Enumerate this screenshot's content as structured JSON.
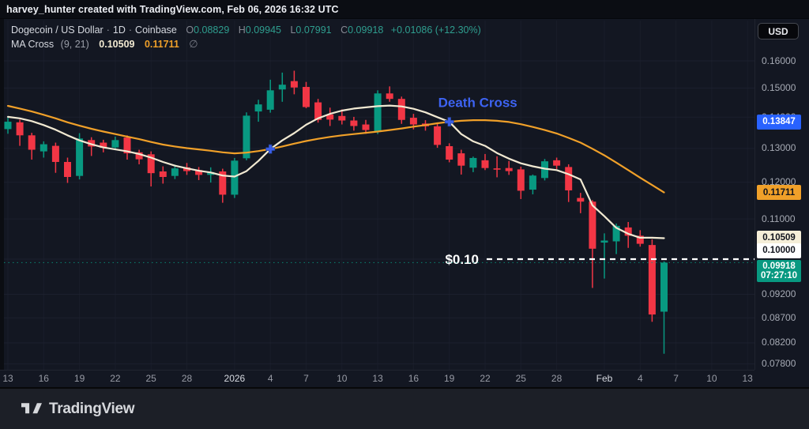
{
  "attribution": "harvey_hunter created with TradingView.com, Feb 06, 2026 16:32 UTC",
  "header": {
    "symbol": "Dogecoin / US Dollar",
    "separator": "·",
    "interval": "1D",
    "exchange": "Coinbase",
    "ohlc": {
      "o_label": "O",
      "o": "0.08829",
      "h_label": "H",
      "h": "0.09945",
      "l_label": "L",
      "l": "0.07991",
      "c_label": "C",
      "c": "0.09918",
      "change": "+0.01086 (+12.30%)"
    },
    "indicator": {
      "name": "MA Cross",
      "args": "(9, 21)",
      "ma_fast_value": "0.10509",
      "ma_slow_value": "0.11711",
      "extra": "∅"
    }
  },
  "currency_button_label": "USD",
  "footer_logo_text": "TradingView",
  "colors": {
    "background": "#131722",
    "up": "#089981",
    "down": "#f23645",
    "ma_fast": "#f1e9d2",
    "ma_slow": "#f0a029",
    "marker_blue": "#3a5eea",
    "annotation_blue": "#3d63f2",
    "grid": "#1e2230",
    "price_line_white": "#ffffff",
    "label_blue_bg": "#2962ff",
    "label_orange_bg": "#f0a029",
    "label_cream_bg": "#f5eed8",
    "label_white_bg": "#ffffff",
    "label_green_bg": "#089981"
  },
  "annotations": {
    "death_cross_text": "Death Cross",
    "price_line_label": "$0.10",
    "price_line_value": 0.1,
    "current_price": 0.09918,
    "countdown": "07:27:10"
  },
  "price_axis": {
    "ticks": [
      {
        "text": "0.16000",
        "price": 0.16
      },
      {
        "text": "0.15000",
        "price": 0.15
      },
      {
        "text": "0.14000",
        "price": 0.14
      },
      {
        "text": "0.13000",
        "price": 0.13
      },
      {
        "text": "0.12000",
        "price": 0.12
      },
      {
        "text": "0.11000",
        "price": 0.11
      },
      {
        "text": "0.09200",
        "price": 0.092
      },
      {
        "text": "0.08700",
        "price": 0.087
      },
      {
        "text": "0.08200",
        "price": 0.082
      },
      {
        "text": "0.07800",
        "price": 0.078
      }
    ],
    "grid_only_prices": [
      0.1
    ],
    "badges": [
      {
        "text": "0.13847",
        "price": 0.13847,
        "bg": "#2962ff",
        "fg": "#ffffff"
      },
      {
        "text": "0.11711",
        "price": 0.11711,
        "bg": "#f0a029",
        "fg": "#10131c"
      },
      {
        "text": "0.10509",
        "price": 0.10509,
        "bg": "#f5eed8",
        "fg": "#10131c"
      },
      {
        "text": "0.10000",
        "price": 0.1,
        "bg": "#ffffff",
        "fg": "#10131c",
        "y_override": 317
      },
      {
        "text": "0.09918",
        "sub": "07:27:10",
        "price": 0.09918,
        "bg": "#089981",
        "fg": "#ffffff",
        "y_override": 343
      }
    ]
  },
  "time_axis": {
    "labels": [
      {
        "index": 0,
        "text": "13"
      },
      {
        "index": 3,
        "text": "16"
      },
      {
        "index": 6,
        "text": "19"
      },
      {
        "index": 9,
        "text": "22"
      },
      {
        "index": 12,
        "text": "25"
      },
      {
        "index": 15,
        "text": "28"
      },
      {
        "index": 19,
        "text": "2026",
        "major": true
      },
      {
        "index": 22,
        "text": "4"
      },
      {
        "index": 25,
        "text": "7"
      },
      {
        "index": 28,
        "text": "10"
      },
      {
        "index": 31,
        "text": "13"
      },
      {
        "index": 34,
        "text": "16"
      },
      {
        "index": 37,
        "text": "19"
      },
      {
        "index": 40,
        "text": "22"
      },
      {
        "index": 43,
        "text": "25"
      },
      {
        "index": 46,
        "text": "28"
      },
      {
        "index": 50,
        "text": "Feb",
        "major": true
      },
      {
        "index": 53,
        "text": "4"
      },
      {
        "index": 56,
        "text": "7"
      },
      {
        "index": 59,
        "text": "10"
      },
      {
        "index": 62,
        "text": "13"
      }
    ]
  },
  "chart_data": {
    "type": "candlestick",
    "title": "Dogecoin / US Dollar, 1D, Coinbase",
    "scale": "log",
    "ylim": [
      0.076,
      0.165
    ],
    "grid": true,
    "candles_format": [
      "date",
      "open",
      "high",
      "low",
      "close"
    ],
    "candles": [
      [
        "Dec 13",
        0.1361,
        0.1398,
        0.1346,
        0.1385
      ],
      [
        "Dec 14",
        0.1383,
        0.1392,
        0.1308,
        0.1341
      ],
      [
        "Dec 15",
        0.1341,
        0.1349,
        0.1266,
        0.1296
      ],
      [
        "Dec 16",
        0.1291,
        0.1322,
        0.1272,
        0.1313
      ],
      [
        "Dec 17",
        0.1308,
        0.1318,
        0.1227,
        0.1259
      ],
      [
        "Dec 18",
        0.1259,
        0.1272,
        0.1198,
        0.1215
      ],
      [
        "Dec 19",
        0.1218,
        0.1348,
        0.1208,
        0.1331
      ],
      [
        "Dec 20",
        0.1326,
        0.1335,
        0.1277,
        0.1306
      ],
      [
        "Dec 21",
        0.1318,
        0.1327,
        0.1288,
        0.1302
      ],
      [
        "Dec 22",
        0.1303,
        0.1337,
        0.1295,
        0.1326
      ],
      [
        "Dec 23",
        0.1334,
        0.1341,
        0.1266,
        0.1285
      ],
      [
        "Dec 24",
        0.1288,
        0.1296,
        0.1252,
        0.1267
      ],
      [
        "Dec 25",
        0.1282,
        0.1291,
        0.1188,
        0.1226
      ],
      [
        "Dec 26",
        0.1231,
        0.1246,
        0.1196,
        0.1215
      ],
      [
        "Dec 27",
        0.1218,
        0.1251,
        0.1209,
        0.124
      ],
      [
        "Dec 28",
        0.1243,
        0.1256,
        0.1221,
        0.1232
      ],
      [
        "Dec 29",
        0.1235,
        0.1244,
        0.1206,
        0.1221
      ],
      [
        "Dec 30",
        0.1221,
        0.1243,
        0.1199,
        0.1229
      ],
      [
        "Dec 31",
        0.1231,
        0.1239,
        0.1143,
        0.1165
      ],
      [
        "Jan 1",
        0.1165,
        0.1271,
        0.1156,
        0.1263
      ],
      [
        "Jan 2",
        0.127,
        0.1416,
        0.1264,
        0.1405
      ],
      [
        "Jan 3",
        0.1419,
        0.1459,
        0.1385,
        0.1443
      ],
      [
        "Jan 4",
        0.1425,
        0.153,
        0.1415,
        0.1492
      ],
      [
        "Jan 5",
        0.1495,
        0.1556,
        0.1452,
        0.1512
      ],
      [
        "Jan 6",
        0.1525,
        0.1563,
        0.1478,
        0.1502
      ],
      [
        "Jan 7",
        0.1504,
        0.1522,
        0.143,
        0.1434
      ],
      [
        "Jan 8",
        0.145,
        0.1462,
        0.1382,
        0.1391
      ],
      [
        "Jan 9",
        0.1409,
        0.1432,
        0.1371,
        0.1392
      ],
      [
        "Jan 10",
        0.1404,
        0.1426,
        0.1376,
        0.1389
      ],
      [
        "Jan 11",
        0.1389,
        0.1401,
        0.1356,
        0.1371
      ],
      [
        "Jan 12",
        0.1376,
        0.1391,
        0.1346,
        0.1358
      ],
      [
        "Jan 13",
        0.1353,
        0.1492,
        0.1345,
        0.1481
      ],
      [
        "Jan 14",
        0.1481,
        0.1506,
        0.1452,
        0.1462
      ],
      [
        "Jan 15",
        0.1462,
        0.147,
        0.1378,
        0.1391
      ],
      [
        "Jan 16",
        0.1398,
        0.1411,
        0.136,
        0.1376
      ],
      [
        "Jan 17",
        0.1379,
        0.139,
        0.1356,
        0.137
      ],
      [
        "Jan 18",
        0.137,
        0.1378,
        0.1302,
        0.1311
      ],
      [
        "Jan 19",
        0.1307,
        0.1316,
        0.1258,
        0.1266
      ],
      [
        "Jan 20",
        0.1285,
        0.1296,
        0.1222,
        0.1248
      ],
      [
        "Jan 21",
        0.1242,
        0.1275,
        0.1229,
        0.1271
      ],
      [
        "Jan 22",
        0.1264,
        0.1283,
        0.1235,
        0.1241
      ],
      [
        "Jan 23",
        0.124,
        0.1276,
        0.1214,
        0.1239
      ],
      [
        "Jan 24",
        0.1241,
        0.1262,
        0.1221,
        0.1232
      ],
      [
        "Jan 25",
        0.1237,
        0.1245,
        0.1153,
        0.1176
      ],
      [
        "Jan 26",
        0.1179,
        0.1222,
        0.1166,
        0.1219
      ],
      [
        "Jan 27",
        0.1212,
        0.1268,
        0.1205,
        0.1261
      ],
      [
        "Jan 28",
        0.1264,
        0.1272,
        0.1238,
        0.1248
      ],
      [
        "Jan 29",
        0.1244,
        0.1252,
        0.1145,
        0.1177
      ],
      [
        "Jan 30",
        0.1156,
        0.117,
        0.1115,
        0.1146
      ],
      [
        "Jan 31",
        0.1146,
        0.115,
        0.0934,
        0.1025
      ],
      [
        "Feb 1",
        0.104,
        0.1063,
        0.0955,
        0.1045
      ],
      [
        "Feb 2",
        0.1043,
        0.1088,
        0.1012,
        0.1082
      ],
      [
        "Feb 3",
        0.1078,
        0.1092,
        0.1027,
        0.1057
      ],
      [
        "Feb 4",
        0.1057,
        0.1071,
        0.103,
        0.1037
      ],
      [
        "Feb 5",
        0.1034,
        0.1048,
        0.0862,
        0.0877
      ],
      [
        "Feb 6",
        0.08829,
        0.09945,
        0.07991,
        0.09918
      ]
    ],
    "series": [
      {
        "name": "MA 9",
        "period": 9,
        "color": "#f1e9d2",
        "values": [
          0.1401,
          0.1396,
          0.1387,
          0.1374,
          0.1359,
          0.1341,
          0.1325,
          0.1313,
          0.1303,
          0.1297,
          0.1291,
          0.1283,
          0.1272,
          0.1259,
          0.1248,
          0.124,
          0.1233,
          0.1228,
          0.1219,
          0.1216,
          0.1232,
          0.1262,
          0.1298,
          0.1325,
          0.1348,
          0.1375,
          0.1396,
          0.1411,
          0.1422,
          0.1429,
          0.1433,
          0.1437,
          0.1439,
          0.1436,
          0.1428,
          0.1416,
          0.14,
          0.13847,
          0.1345,
          0.1322,
          0.1308,
          0.1286,
          0.1269,
          0.1255,
          0.1246,
          0.1239,
          0.1235,
          0.1223,
          0.1208,
          0.1136,
          0.1107,
          0.1077,
          0.1062,
          0.1052,
          0.1052,
          0.10509
        ]
      },
      {
        "name": "MA 21",
        "period": 21,
        "color": "#f0a029",
        "values": [
          0.1438,
          0.1429,
          0.1419,
          0.1408,
          0.1396,
          0.1383,
          0.1372,
          0.1362,
          0.1353,
          0.1345,
          0.1337,
          0.1329,
          0.132,
          0.1312,
          0.1306,
          0.1301,
          0.1297,
          0.1293,
          0.1288,
          0.1285,
          0.1287,
          0.1292,
          0.1298,
          0.1306,
          0.1315,
          0.1323,
          0.133,
          0.1336,
          0.1341,
          0.1345,
          0.1349,
          0.1353,
          0.1358,
          0.1363,
          0.1369,
          0.1374,
          0.138,
          0.13847,
          0.1388,
          0.139,
          0.139,
          0.1388,
          0.1384,
          0.1377,
          0.1368,
          0.1358,
          0.1347,
          0.1333,
          0.1318,
          0.1299,
          0.1279,
          0.1257,
          0.1235,
          0.1213,
          0.1192,
          0.11711
        ]
      }
    ],
    "markers": [
      {
        "date": "Jan 4",
        "index": 22,
        "price": 0.1298,
        "kind": "golden-cross"
      },
      {
        "date": "Jan 19",
        "index": 37,
        "price": 0.13847,
        "kind": "death-cross",
        "text": "Death Cross"
      }
    ],
    "future_ticks": 7
  }
}
